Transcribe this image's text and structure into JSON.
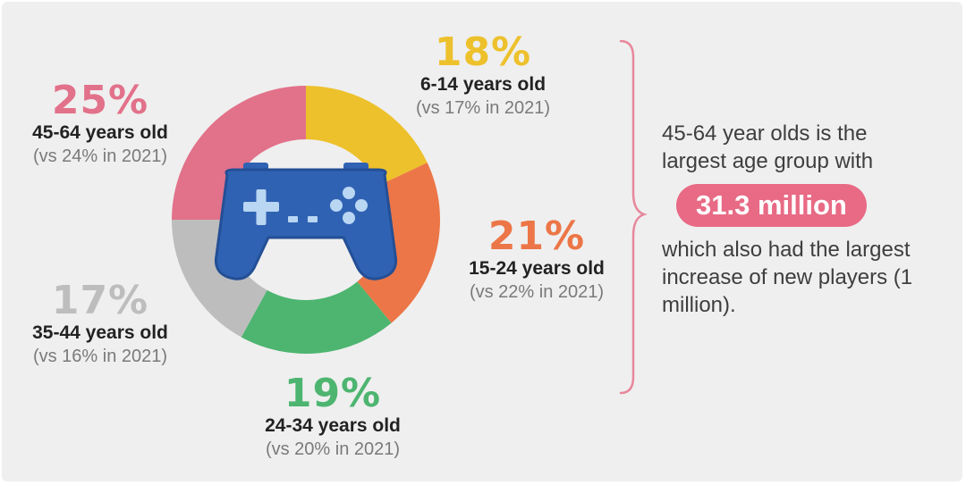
{
  "chart_data": {
    "type": "donut",
    "start_angle_deg": 0,
    "slices": [
      {
        "key": "g6_14",
        "value": 18,
        "percent_label": "18%",
        "age": "6-14 years old",
        "comparison": "(vs 17% in 2021)",
        "color": "#edc12c"
      },
      {
        "key": "g15_24",
        "value": 21,
        "percent_label": "21%",
        "age": "15-24 years old",
        "comparison": "(vs 22% in 2021)",
        "color": "#ec7647"
      },
      {
        "key": "g24_34",
        "value": 19,
        "percent_label": "19%",
        "age": "24-34 years old",
        "comparison": "(vs 20% in 2021)",
        "color": "#4db570"
      },
      {
        "key": "g35_44",
        "value": 17,
        "percent_label": "17%",
        "age": "35-44 years old",
        "comparison": "(vs 16% in 2021)",
        "color": "#bdbdbd"
      },
      {
        "key": "g45_64",
        "value": 25,
        "percent_label": "25%",
        "age": "45-64 years old",
        "comparison": "(vs 24% in 2021)",
        "color": "#e2718a"
      }
    ]
  },
  "center_icon": {
    "name": "gamepad-icon",
    "color": "#2f62b3",
    "highlight": "#b9d6f3"
  },
  "note": {
    "line1": "45-64 year olds is the largest age group with",
    "highlight": "31.3 million",
    "line2": "which also had the largest increase of new players (1 million).",
    "highlight_color": "#e86a85"
  },
  "brace_color": "#e8879b"
}
